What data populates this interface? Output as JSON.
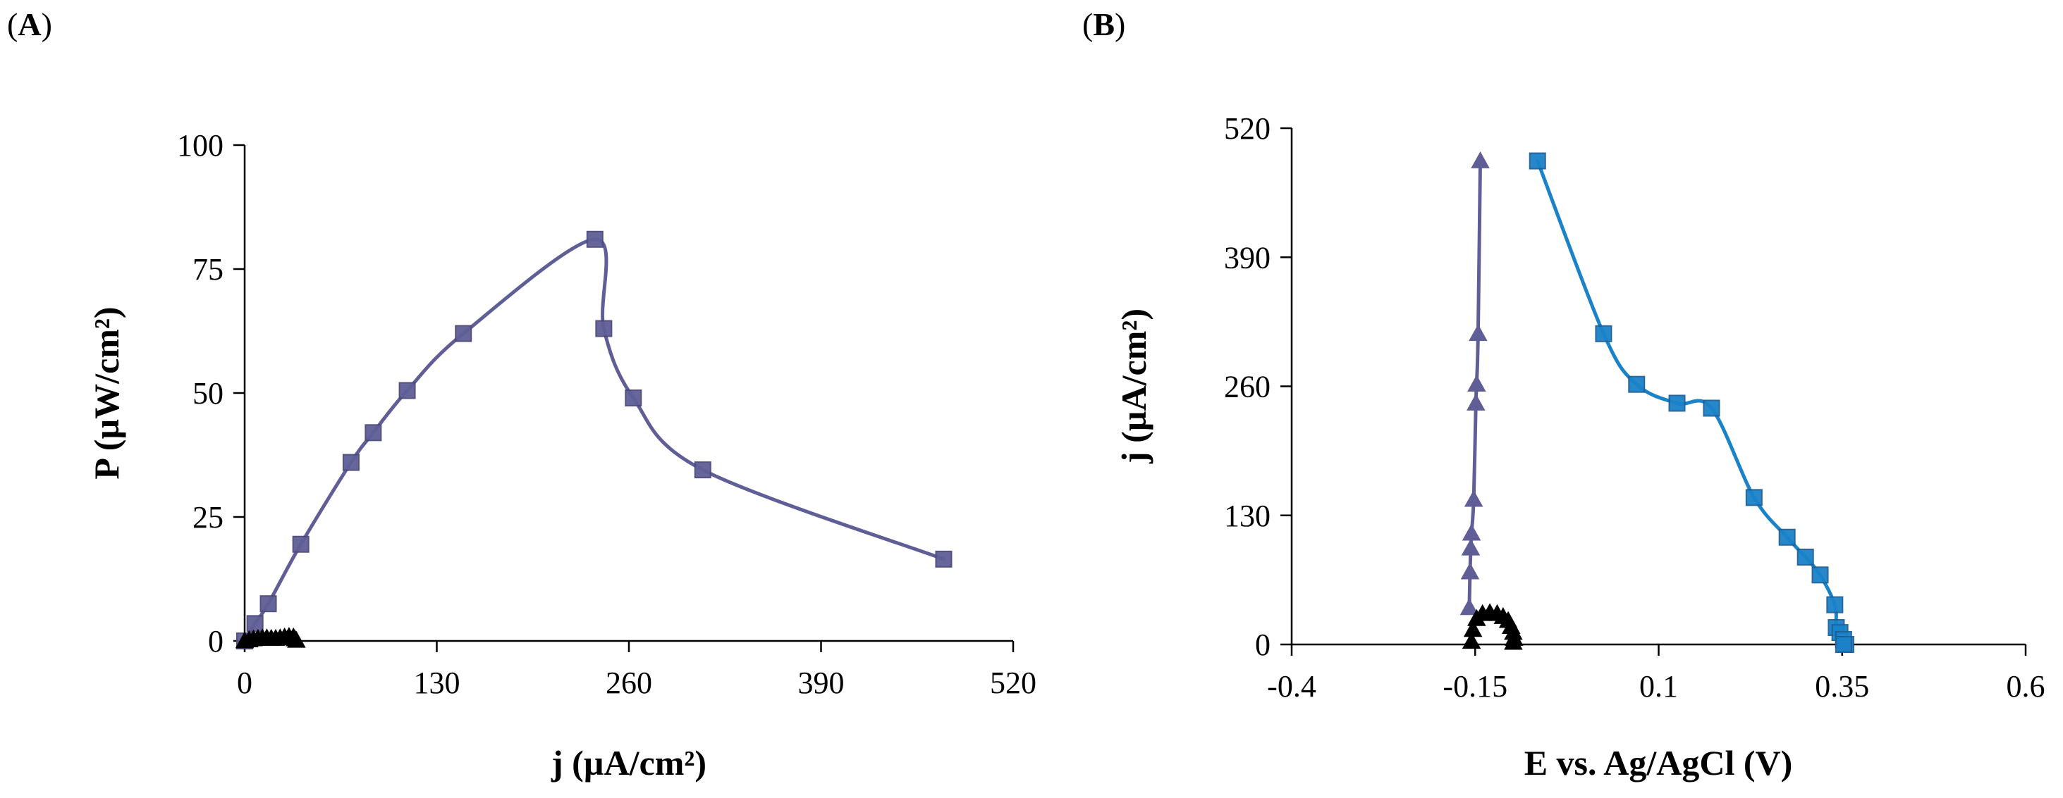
{
  "panels": {
    "a": {
      "open": "(",
      "letter": "A",
      "close": ")"
    },
    "b": {
      "open": "(",
      "letter": "B",
      "close": ")"
    }
  },
  "colors": {
    "purple": "#5f5e96",
    "purple_marker": "#6b6aa3",
    "blue": "#1a82c8",
    "blue_marker": "#4a90c9",
    "black": "#000000"
  },
  "chart_data": [
    {
      "id": "A",
      "type": "line",
      "xlabel": "j (µA/cm²)",
      "ylabel": "P (µW/cm²)",
      "xlim": [
        0,
        520
      ],
      "ylim": [
        0,
        100
      ],
      "xticks": [
        "0",
        "130",
        "260",
        "390",
        "520"
      ],
      "yticks": [
        "0",
        "25",
        "50",
        "75",
        "100"
      ],
      "series": [
        {
          "name": "power-density-squares",
          "marker": "square",
          "color": "#5f5e96",
          "x": [
            0,
            7,
            16,
            38,
            72,
            87,
            110,
            148,
            237,
            243,
            263,
            310,
            473
          ],
          "y": [
            0,
            3.5,
            7.5,
            19.5,
            36,
            42,
            50.5,
            62,
            81,
            63,
            49,
            34.5,
            16.5
          ]
        },
        {
          "name": "power-density-triangles",
          "marker": "triangle",
          "color": "#000000",
          "x": [
            0,
            3,
            6,
            9,
            12,
            15,
            18,
            21,
            24,
            27,
            30,
            33,
            34,
            35
          ],
          "y": [
            0,
            0.2,
            0.4,
            0.5,
            0.6,
            0.6,
            0.5,
            0.5,
            0.6,
            0.8,
            0.9,
            0.8,
            0.4,
            0.1
          ]
        }
      ]
    },
    {
      "id": "B",
      "type": "line",
      "xlabel": "E vs. Ag/AgCl (V)",
      "ylabel": "j (µA/cm²)",
      "xlim": [
        -0.4,
        0.6
      ],
      "ylim": [
        0,
        520
      ],
      "xticks": [
        "-0.4",
        "-0.15",
        "0.1",
        "0.35",
        "0.6"
      ],
      "yticks": [
        "0",
        "130",
        "260",
        "390",
        "520"
      ],
      "series": [
        {
          "name": "cathode-blue-squares",
          "marker": "square",
          "color": "#1a82c8",
          "x": [
            -0.065,
            0.025,
            0.07,
            0.125,
            0.172,
            0.23,
            0.275,
            0.3,
            0.32,
            0.34,
            0.342,
            0.347,
            0.352,
            0.355,
            0.352
          ],
          "y": [
            487,
            313,
            262,
            243,
            238,
            148,
            108,
            88,
            70,
            40,
            17,
            12,
            5,
            0,
            0
          ]
        },
        {
          "name": "anode-purple-triangles",
          "marker": "triangle",
          "color": "#5f5e96",
          "x": [
            -0.158,
            -0.157,
            -0.156,
            -0.155,
            -0.152,
            -0.149,
            -0.148,
            -0.146,
            -0.143
          ],
          "y": [
            37,
            73,
            97,
            112,
            146,
            243,
            262,
            313,
            487
          ]
        },
        {
          "name": "control-black-triangles",
          "marker": "triangle",
          "color": "#000000",
          "x": [
            -0.155,
            -0.153,
            -0.148,
            -0.14,
            -0.13,
            -0.12,
            -0.112,
            -0.105,
            -0.101,
            -0.098,
            -0.097,
            -0.098
          ],
          "y": [
            3,
            15,
            26,
            31,
            32,
            31,
            28,
            24,
            18,
            12,
            6,
            2
          ]
        }
      ]
    }
  ]
}
